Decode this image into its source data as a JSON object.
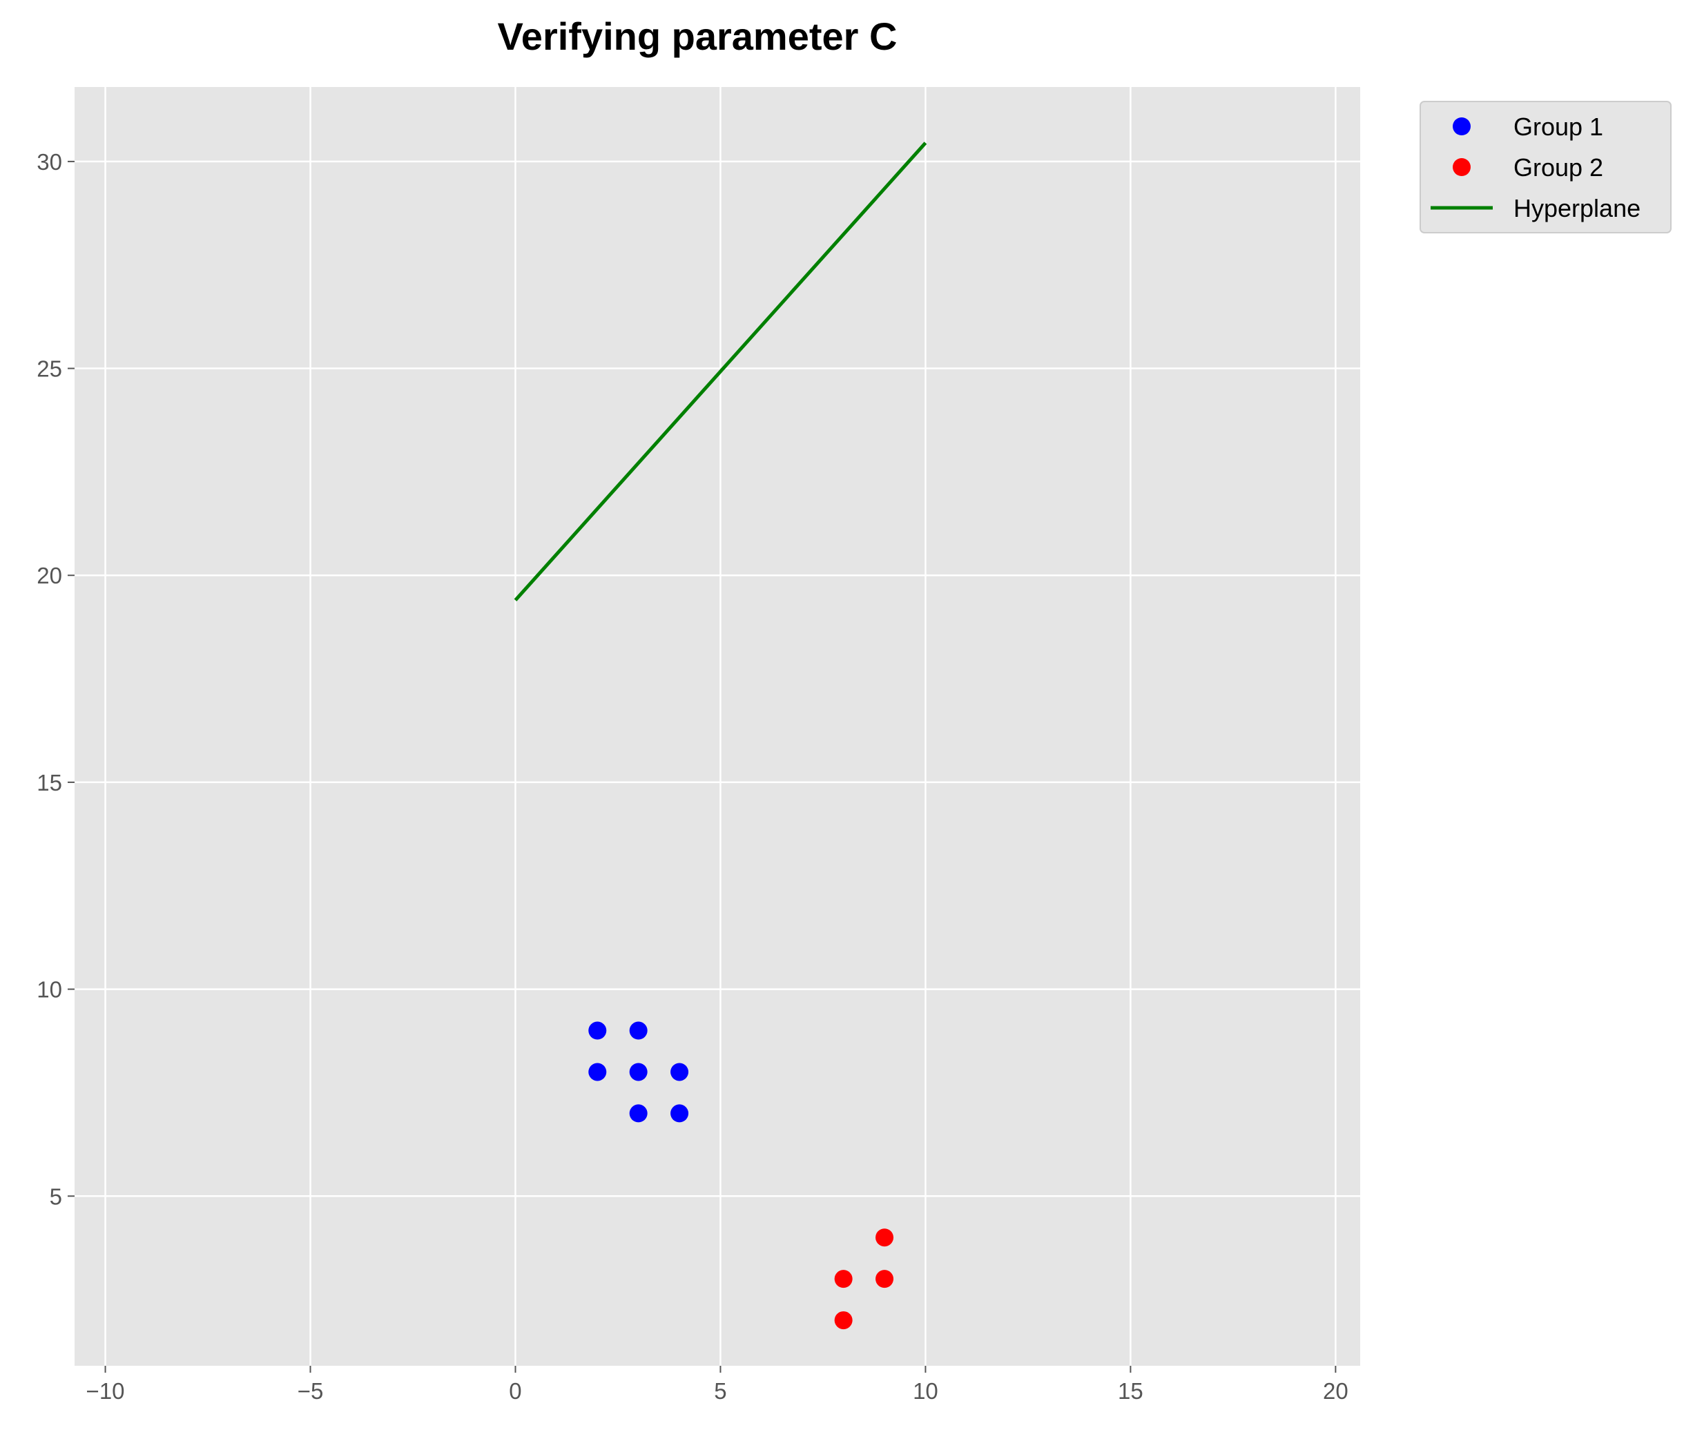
{
  "chart_data": {
    "type": "scatter",
    "title": "Verifying parameter C",
    "xlabel": "",
    "ylabel": "",
    "xlim": [
      -10.75,
      20.6
    ],
    "ylim": [
      0.9,
      31.8
    ],
    "xticks": [
      -10,
      -5,
      0,
      5,
      10,
      15,
      20
    ],
    "yticks": [
      5,
      10,
      15,
      20,
      25,
      30
    ],
    "xtick_labels": [
      "−10",
      "−5",
      "0",
      "5",
      "10",
      "15",
      "20"
    ],
    "ytick_labels": [
      "5",
      "10",
      "15",
      "20",
      "25",
      "30"
    ],
    "grid": true,
    "background": "#e5e5e5",
    "legend_position": "outside-top-right",
    "series": [
      {
        "name": "Group 1",
        "kind": "scatter",
        "color": "#0000ff",
        "points": [
          [
            2,
            9
          ],
          [
            3,
            9
          ],
          [
            2,
            8
          ],
          [
            3,
            8
          ],
          [
            4,
            8
          ],
          [
            3,
            7
          ],
          [
            4,
            7
          ]
        ]
      },
      {
        "name": "Group 2",
        "kind": "scatter",
        "color": "#ff0000",
        "points": [
          [
            9,
            4
          ],
          [
            8,
            3
          ],
          [
            9,
            3
          ],
          [
            8,
            2
          ]
        ]
      },
      {
        "name": "Hyperplane",
        "kind": "line",
        "color": "#008000",
        "points": [
          [
            0,
            19.4
          ],
          [
            10,
            30.45
          ]
        ]
      }
    ]
  }
}
